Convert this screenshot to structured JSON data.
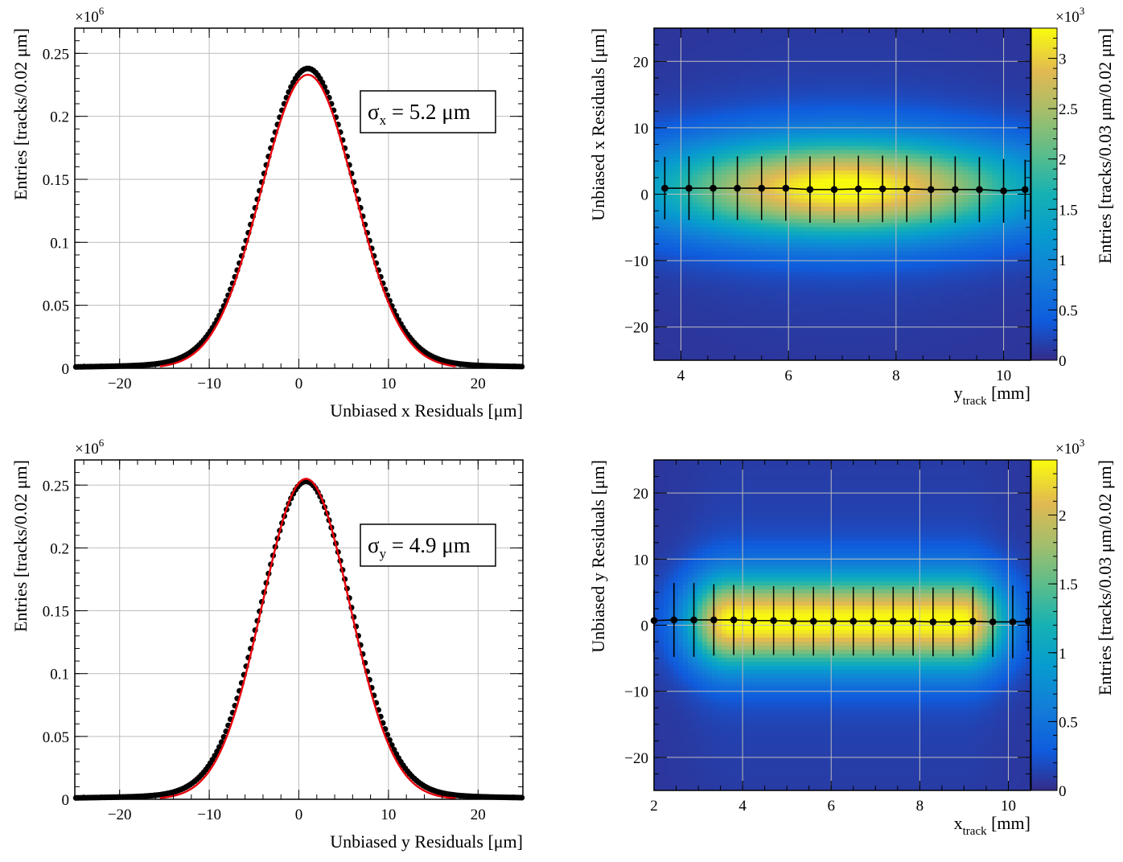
{
  "chart_data": [
    {
      "id": "hx",
      "type": "scatter",
      "subtype": "histogram-with-gaussian-fit",
      "title": "",
      "xlabel": "Unbiased x Residuals [μm]",
      "ylabel": "Entries [tracks/0.02 μm]",
      "multiplier_label": "×10",
      "multiplier_exponent": "6",
      "xlim": [
        -25,
        25
      ],
      "ylim": [
        0,
        0.27
      ],
      "x_ticks": [
        -20,
        -10,
        0,
        10,
        20
      ],
      "x_tick_labels": [
        "−20",
        "−10",
        "0",
        "10",
        "20"
      ],
      "y_ticks": [
        0,
        0.05,
        0.1,
        0.15,
        0.2,
        0.25
      ],
      "y_tick_labels": [
        "0",
        "0.05",
        "0.1",
        "0.15",
        "0.2",
        "0.25"
      ],
      "grid": true,
      "legend_box": {
        "sigma_symbol": "σ",
        "sigma_sub": "x",
        "value_text": " = 5.2 μm"
      },
      "series": [
        {
          "name": "data",
          "model": "gaussian+tails",
          "amplitude": 0.234,
          "mean": 1.0,
          "sigma": 5.2,
          "tail_amplitude": 0.004,
          "tail_sigma": 16,
          "x_range": [
            -25,
            25
          ],
          "n_points": 200,
          "color": "#000000"
        },
        {
          "name": "fit",
          "model": "gaussian",
          "amplitude": 0.233,
          "mean": 1.0,
          "sigma": 5.2,
          "color": "#e8000b"
        }
      ]
    },
    {
      "id": "hy",
      "type": "scatter",
      "subtype": "histogram-with-gaussian-fit",
      "title": "",
      "xlabel": "Unbiased y Residuals [μm]",
      "ylabel": "Entries [tracks/0.02 μm]",
      "multiplier_label": "×10",
      "multiplier_exponent": "6",
      "xlim": [
        -25,
        25
      ],
      "ylim": [
        0,
        0.27
      ],
      "x_ticks": [
        -20,
        -10,
        0,
        10,
        20
      ],
      "x_tick_labels": [
        "−20",
        "−10",
        "0",
        "10",
        "20"
      ],
      "y_ticks": [
        0,
        0.05,
        0.1,
        0.15,
        0.2,
        0.25
      ],
      "y_tick_labels": [
        "0",
        "0.05",
        "0.1",
        "0.15",
        "0.2",
        "0.25"
      ],
      "grid": true,
      "legend_box": {
        "sigma_symbol": "σ",
        "sigma_sub": "y",
        "value_text": " = 4.9 μm"
      },
      "series": [
        {
          "name": "data",
          "model": "gaussian+tails",
          "amplitude": 0.249,
          "mean": 0.8,
          "sigma": 5.0,
          "tail_amplitude": 0.004,
          "tail_sigma": 16,
          "x_range": [
            -25,
            25
          ],
          "n_points": 200,
          "color": "#000000"
        },
        {
          "name": "fit",
          "model": "gaussian",
          "amplitude": 0.255,
          "mean": 0.8,
          "sigma": 4.9,
          "color": "#e8000b"
        }
      ]
    },
    {
      "id": "h2x",
      "type": "heatmap",
      "title": "",
      "xlabel_main": "y",
      "xlabel_sub": "track",
      "xlabel_unit": " [mm]",
      "ylabel": "Unbiased x Residuals [μm]",
      "zlabel": "Entries [tracks/0.03 μm/0.02 μm]",
      "z_multiplier_label": "×10",
      "z_multiplier_exponent": "3",
      "xlim": [
        3.5,
        10.5
      ],
      "ylim": [
        -25,
        25
      ],
      "zlim": [
        0,
        3.3
      ],
      "x_ticks": [
        4,
        6,
        8,
        10
      ],
      "x_tick_labels": [
        "4",
        "6",
        "8",
        "10"
      ],
      "y_ticks": [
        -20,
        -10,
        0,
        10,
        20
      ],
      "y_tick_labels": [
        "−20",
        "−10",
        "0",
        "10",
        "20"
      ],
      "z_ticks": [
        0,
        0.5,
        1,
        1.5,
        2,
        2.5,
        3
      ],
      "z_tick_labels": [
        "0",
        "0.5",
        "1",
        "1.5",
        "2",
        "2.5",
        "3"
      ],
      "grid": true,
      "density": {
        "x_center": 7.0,
        "x_sigma": 2.5,
        "x_flat_halfwidth": 0,
        "y_center": 1.0,
        "y_sigma": 5.2,
        "peak": 3.25,
        "background": 0.12
      },
      "profile": {
        "x": [
          3.7,
          4.15,
          4.6,
          5.05,
          5.5,
          5.95,
          6.4,
          6.85,
          7.3,
          7.75,
          8.2,
          8.65,
          9.1,
          9.55,
          10.0,
          10.4
        ],
        "y": [
          0.9,
          0.9,
          0.9,
          0.9,
          0.9,
          0.9,
          0.7,
          0.7,
          0.8,
          0.8,
          0.8,
          0.7,
          0.7,
          0.7,
          0.5,
          0.7
        ],
        "err": [
          4.7,
          4.8,
          4.8,
          4.8,
          4.8,
          4.9,
          5.0,
          5.0,
          5.0,
          5.0,
          5.0,
          5.0,
          5.0,
          4.9,
          4.8,
          4.5
        ]
      }
    },
    {
      "id": "h2y",
      "type": "heatmap",
      "title": "",
      "xlabel_main": "x",
      "xlabel_sub": "track",
      "xlabel_unit": " [mm]",
      "ylabel": "Unbiased y Residuals [μm]",
      "zlabel": "Entries [tracks/0.03 μm/0.02 μm]",
      "z_multiplier_label": "×10",
      "z_multiplier_exponent": "3",
      "xlim": [
        2.0,
        10.5
      ],
      "ylim": [
        -25,
        25
      ],
      "zlim": [
        0,
        2.4
      ],
      "x_ticks": [
        2,
        4,
        6,
        8,
        10
      ],
      "x_tick_labels": [
        "2",
        "4",
        "6",
        "8",
        "10"
      ],
      "y_ticks": [
        -20,
        -10,
        0,
        10,
        20
      ],
      "y_tick_labels": [
        "−20",
        "−10",
        "0",
        "10",
        "20"
      ],
      "z_ticks": [
        0,
        0.5,
        1,
        1.5,
        2
      ],
      "z_tick_labels": [
        "0",
        "0.5",
        "1",
        "1.5",
        "2"
      ],
      "grid": true,
      "density": {
        "x_center": 6.35,
        "x_sigma": 0.7,
        "x_flat_halfwidth": 2.6,
        "y_center": 0.6,
        "y_sigma": 4.9,
        "peak": 2.3,
        "background": 0.12
      },
      "profile": {
        "x": [
          2.0,
          2.45,
          2.9,
          3.35,
          3.8,
          4.25,
          4.7,
          5.15,
          5.6,
          6.05,
          6.5,
          6.95,
          7.4,
          7.85,
          8.3,
          8.75,
          9.2,
          9.65,
          10.1,
          10.45
        ],
        "y": [
          0.7,
          0.8,
          0.8,
          0.8,
          0.8,
          0.7,
          0.7,
          0.6,
          0.6,
          0.6,
          0.6,
          0.6,
          0.6,
          0.6,
          0.5,
          0.5,
          0.6,
          0.5,
          0.5,
          0.6
        ],
        "err": [
          4.7,
          5.6,
          5.6,
          5.4,
          5.3,
          5.2,
          5.2,
          5.2,
          5.2,
          5.2,
          5.2,
          5.2,
          5.2,
          5.2,
          5.2,
          5.2,
          5.2,
          5.3,
          5.5,
          4.5
        ]
      }
    }
  ]
}
